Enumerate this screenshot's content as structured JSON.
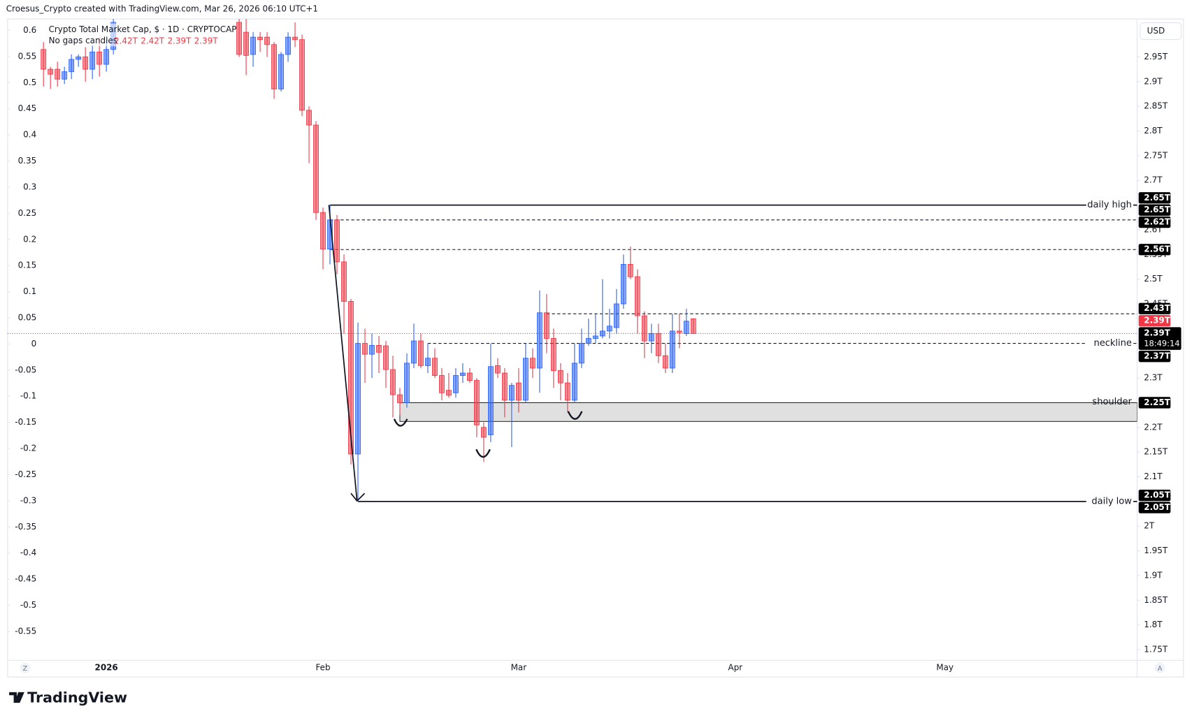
{
  "header": {
    "credit": "Croesus_Crypto created with TradingView.com, Mar 26, 2026 06:10 UTC+1",
    "logo": "TradingView"
  },
  "chart_data": {
    "type": "candlestick",
    "title": "Crypto Total Market Cap, $ · 1D · CRYPTOCAP",
    "subtitle": "No gaps candles",
    "ohlc_labels": [
      "2.42T",
      "2.42T",
      "2.39T",
      "2.39T"
    ],
    "currency": "USD",
    "corner_left": "Z",
    "corner_right": "A",
    "up_color": "#2962ff",
    "down_color": "#f23645",
    "categories": [
      null,
      null,
      null,
      null,
      null,
      null,
      null,
      null,
      null,
      "2026",
      null,
      null,
      null,
      null,
      null,
      null,
      null,
      null,
      null,
      null,
      null,
      null,
      null,
      null,
      null,
      null,
      null,
      null,
      null,
      null,
      null,
      null,
      null,
      null,
      null,
      null,
      null,
      null,
      null,
      null,
      "Feb",
      null,
      null,
      null,
      null,
      null,
      null,
      null,
      null,
      null,
      null,
      null,
      null,
      null,
      null,
      null,
      null,
      null,
      null,
      null,
      null,
      null,
      null,
      null,
      null,
      null,
      null,
      null,
      "Mar",
      null,
      null,
      null,
      null,
      null,
      null,
      null,
      null,
      null,
      null,
      null,
      null,
      null,
      null,
      null,
      null,
      null,
      null,
      null,
      null,
      null,
      null,
      null,
      null,
      null,
      null,
      null,
      null,
      null,
      null,
      "Apr",
      null,
      null,
      null,
      null,
      null,
      null,
      null,
      null,
      null,
      null,
      null,
      null,
      null,
      null,
      null,
      null,
      null,
      null,
      null,
      null,
      null,
      null,
      null,
      null,
      null,
      null,
      null,
      null,
      null,
      "May"
    ],
    "open": [
      2.965,
      2.925,
      2.925,
      2.905,
      2.92,
      2.945,
      2.95,
      2.925,
      2.96,
      2.935,
      2.965,
      null,
      null,
      null,
      null,
      null,
      null,
      null,
      null,
      null,
      null,
      null,
      null,
      null,
      null,
      null,
      null,
      null,
      3.02,
      3.0,
      2.955,
      2.99,
      2.99,
      2.975,
      2.885,
      2.955,
      2.99,
      2.985,
      2.842,
      2.812,
      2.635,
      2.561,
      2.62,
      2.535,
      2.455,
      2.146,
      2.37,
      2.348,
      2.366,
      2.365,
      2.317,
      2.266,
      2.25,
      2.33,
      2.375,
      2.325,
      2.34,
      2.305,
      2.275,
      2.27,
      2.305,
      2.31,
      2.295,
      2.2,
      2.185,
      2.325,
      2.31,
      2.255,
      2.29,
      2.255,
      2.34,
      2.32,
      2.432,
      2.38,
      2.315,
      2.29,
      2.255,
      2.33,
      2.37,
      2.38,
      2.385,
      2.395,
      2.402,
      2.45,
      2.53,
      2.505,
      2.426,
      2.375,
      2.39,
      2.345,
      2.32,
      2.395,
      2.39,
      2.42,
      null,
      null,
      null,
      null,
      null,
      null,
      null,
      null,
      null,
      null,
      null,
      null,
      null,
      null,
      null,
      null,
      null,
      null,
      null,
      null,
      null,
      null,
      null,
      null,
      null,
      null,
      null,
      null,
      null,
      null,
      null,
      null,
      null,
      null,
      null,
      null
    ],
    "high": [
      2.98,
      2.93,
      2.94,
      2.93,
      2.955,
      2.955,
      2.97,
      2.975,
      2.99,
      2.985,
      3.03,
      null,
      null,
      null,
      null,
      null,
      null,
      null,
      null,
      null,
      null,
      null,
      null,
      null,
      null,
      null,
      null,
      null,
      3.06,
      3.03,
      3.0,
      3.0,
      3.0,
      2.98,
      2.96,
      3.0,
      3.02,
      2.995,
      2.85,
      2.82,
      2.645,
      2.65,
      2.63,
      2.55,
      2.46,
      2.412,
      2.4,
      2.39,
      2.385,
      2.375,
      2.345,
      2.28,
      2.35,
      2.41,
      2.39,
      2.37,
      2.36,
      2.32,
      2.31,
      2.32,
      2.33,
      2.32,
      2.3,
      2.21,
      2.37,
      2.34,
      2.32,
      2.29,
      2.32,
      2.37,
      2.36,
      2.477,
      2.47,
      2.4,
      2.33,
      2.31,
      2.37,
      2.4,
      2.42,
      2.43,
      2.5,
      2.44,
      2.48,
      2.55,
      2.566,
      2.52,
      2.435,
      2.41,
      2.41,
      2.37,
      2.43,
      2.43,
      2.44,
      2.42,
      null,
      null,
      null,
      null,
      null,
      null,
      null,
      null,
      null,
      null,
      null,
      null,
      null,
      null,
      null,
      null,
      null,
      null,
      null,
      null,
      null,
      null,
      null,
      null,
      null,
      null,
      null,
      null,
      null,
      null,
      null,
      null,
      null,
      null,
      null,
      null
    ],
    "low": [
      2.89,
      2.885,
      2.89,
      2.895,
      2.905,
      2.93,
      2.9,
      2.905,
      2.91,
      2.92,
      2.955,
      null,
      null,
      null,
      null,
      null,
      null,
      null,
      null,
      null,
      null,
      null,
      null,
      null,
      null,
      null,
      null,
      null,
      2.95,
      2.913,
      2.93,
      2.96,
      2.95,
      2.865,
      2.88,
      2.94,
      2.97,
      2.83,
      2.735,
      2.62,
      2.52,
      2.53,
      2.51,
      2.39,
      2.125,
      2.05,
      2.29,
      2.3,
      2.31,
      2.28,
      2.22,
      2.225,
      2.24,
      2.32,
      2.32,
      2.31,
      2.3,
      2.255,
      2.26,
      2.26,
      2.29,
      2.29,
      2.18,
      2.13,
      2.17,
      2.3,
      2.22,
      2.16,
      2.23,
      2.25,
      2.3,
      2.27,
      2.35,
      2.28,
      2.255,
      2.23,
      2.25,
      2.32,
      2.365,
      2.37,
      2.38,
      2.38,
      2.39,
      2.44,
      2.5,
      2.39,
      2.34,
      2.35,
      2.33,
      2.31,
      2.31,
      2.36,
      2.385,
      2.39,
      null,
      null,
      null,
      null,
      null,
      null,
      null,
      null,
      null,
      null,
      null,
      null,
      null,
      null,
      null,
      null,
      null,
      null,
      null,
      null,
      null,
      null,
      null,
      null,
      null,
      null,
      null,
      null,
      null,
      null,
      null,
      null,
      null,
      null,
      null,
      null
    ],
    "close": [
      2.925,
      2.915,
      2.905,
      2.92,
      2.945,
      2.95,
      2.925,
      2.96,
      2.935,
      2.965,
      3.02,
      null,
      null,
      null,
      null,
      null,
      null,
      null,
      null,
      null,
      null,
      null,
      null,
      null,
      null,
      null,
      null,
      null,
      2.955,
      2.953,
      2.99,
      2.985,
      2.975,
      2.885,
      2.955,
      2.99,
      2.985,
      2.842,
      2.812,
      2.635,
      2.561,
      2.62,
      2.535,
      2.455,
      2.146,
      2.37,
      2.348,
      2.366,
      2.352,
      2.317,
      2.266,
      2.25,
      2.33,
      2.375,
      2.325,
      2.34,
      2.305,
      2.27,
      2.265,
      2.305,
      2.31,
      2.295,
      2.205,
      2.18,
      2.323,
      2.31,
      2.255,
      2.285,
      2.255,
      2.34,
      2.32,
      2.432,
      2.38,
      2.315,
      2.29,
      2.255,
      2.33,
      2.37,
      2.38,
      2.385,
      2.395,
      2.405,
      2.45,
      2.53,
      2.505,
      2.426,
      2.375,
      2.39,
      2.345,
      2.32,
      2.395,
      2.392,
      2.415,
      2.39,
      null,
      null,
      null,
      null,
      null,
      null,
      null,
      null,
      null,
      null,
      null,
      null,
      null,
      null,
      null,
      null,
      null,
      null,
      null,
      null,
      null,
      null,
      null,
      null,
      null,
      null,
      null,
      null,
      null,
      null,
      null,
      null,
      null,
      null,
      null,
      null
    ],
    "ylim": [
      1.7284,
      3.0268
    ],
    "yticks": [
      {
        "value": 2.95,
        "label": "2.95T"
      },
      {
        "value": 2.9,
        "label": "2.9T"
      },
      {
        "value": 2.85,
        "label": "2.85T"
      },
      {
        "value": 2.8,
        "label": "2.8T"
      },
      {
        "value": 2.75,
        "label": "2.75T"
      },
      {
        "value": 2.7,
        "label": "2.7T"
      },
      {
        "value": 2.6,
        "label": "2.6T"
      },
      {
        "value": 2.55,
        "label": "2.55T"
      },
      {
        "value": 2.5,
        "label": "2.5T"
      },
      {
        "value": 2.45,
        "label": "2.45T"
      },
      {
        "value": 2.3,
        "label": "2.3T"
      },
      {
        "value": 2.2,
        "label": "2.2T"
      },
      {
        "value": 2.15,
        "label": "2.15T"
      },
      {
        "value": 2.1,
        "label": "2.1T"
      },
      {
        "value": 2,
        "label": "2T"
      },
      {
        "value": 1.95,
        "label": "1.95T"
      },
      {
        "value": 1.9,
        "label": "1.9T"
      },
      {
        "value": 1.85,
        "label": "1.85T"
      },
      {
        "value": 1.8,
        "label": "1.8T"
      },
      {
        "value": 1.75,
        "label": "1.75T"
      }
    ],
    "y2lim": [
      -0.6052,
      0.6218
    ],
    "y2ticks": [
      0.6,
      0.55,
      0.5,
      0.45,
      0.4,
      0.35,
      0.3,
      0.25,
      0.2,
      0.15,
      0.1,
      0.05,
      0,
      -0.05,
      -0.1,
      -0.15,
      -0.2,
      -0.25,
      -0.3,
      -0.35,
      -0.4,
      -0.45,
      -0.5,
      -0.55
    ],
    "levels": [
      {
        "value": 2.65,
        "name": "daily high",
        "style": "solid"
      },
      {
        "value": 2.62,
        "style": "dashed"
      },
      {
        "value": 2.56,
        "style": "dashed"
      },
      {
        "value": 2.43,
        "style": "dashed"
      },
      {
        "value": 2.37,
        "name": "neckline",
        "style": "dashed"
      },
      {
        "value": 2.05,
        "name": "daily low",
        "style": "solid"
      }
    ],
    "zone": {
      "name": "shoulder",
      "from": 2.212,
      "to": 2.25
    },
    "price_tags": [
      {
        "value": 2.65,
        "label": "2.65T",
        "color": "#000000"
      },
      {
        "value": 2.65,
        "label": "2.65T",
        "color": "#000000"
      },
      {
        "value": 2.62,
        "label": "2.62T",
        "color": "#000000"
      },
      {
        "value": 2.56,
        "label": "2.56T",
        "color": "#000000"
      },
      {
        "value": 2.43,
        "label": "2.43T",
        "color": "#000000"
      },
      {
        "value": 2.39,
        "label": "2.39T",
        "color": "#f23645"
      },
      {
        "value": 2.39,
        "label": "2.39T",
        "color": "#000000",
        "countdown": "18:49:14"
      },
      {
        "value": 2.37,
        "label": "2.37T",
        "color": "#000000"
      },
      {
        "value": 2.25,
        "label": "2.25T",
        "color": "#000000"
      },
      {
        "value": 2.05,
        "label": "2.05T",
        "color": "#000000"
      },
      {
        "value": 2.05,
        "label": "2.05T",
        "color": "#000000"
      }
    ]
  }
}
